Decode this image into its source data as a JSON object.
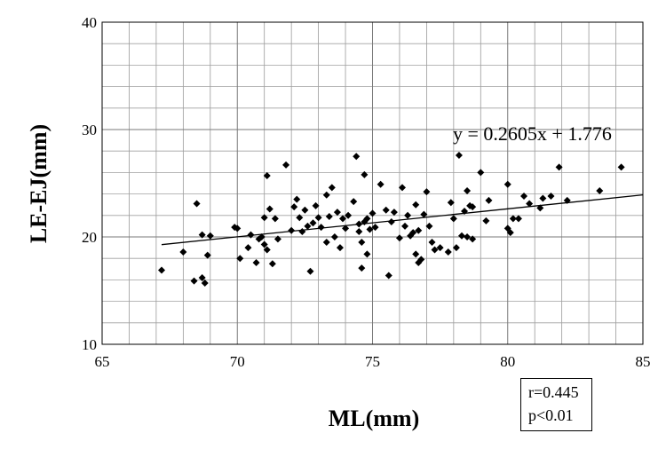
{
  "chart_data": {
    "type": "scatter",
    "title": "",
    "xlabel": "ML(mm)",
    "ylabel": "LE-EJ(mm)",
    "xlim": [
      65,
      85
    ],
    "ylim": [
      10,
      40
    ],
    "x_ticks": [
      "65",
      "70",
      "75",
      "80",
      "85"
    ],
    "y_ticks": [
      "10",
      "20",
      "30",
      "40"
    ],
    "grid": true,
    "marker": "diamond",
    "color": "#000000",
    "trendline": {
      "slope": 0.2605,
      "intercept": 1.776,
      "x_range": [
        67.2,
        85
      ],
      "equation": "y = 0.2605x + 1.776"
    },
    "stats": {
      "r": "r=0.445",
      "p": "p<0.01"
    },
    "points": [
      [
        67.2,
        16.9
      ],
      [
        68.0,
        18.6
      ],
      [
        68.4,
        15.9
      ],
      [
        68.5,
        23.1
      ],
      [
        68.7,
        16.2
      ],
      [
        68.7,
        20.2
      ],
      [
        68.8,
        15.7
      ],
      [
        68.9,
        18.3
      ],
      [
        69.0,
        20.1
      ],
      [
        69.9,
        20.9
      ],
      [
        70.0,
        20.8
      ],
      [
        70.1,
        18.0
      ],
      [
        70.4,
        19.0
      ],
      [
        70.5,
        20.2
      ],
      [
        70.7,
        17.6
      ],
      [
        70.8,
        19.8
      ],
      [
        70.9,
        20.0
      ],
      [
        71.0,
        21.8
      ],
      [
        71.0,
        19.3
      ],
      [
        71.1,
        25.7
      ],
      [
        71.1,
        18.8
      ],
      [
        71.2,
        22.6
      ],
      [
        71.3,
        17.5
      ],
      [
        71.4,
        21.7
      ],
      [
        71.5,
        19.8
      ],
      [
        71.8,
        26.7
      ],
      [
        72.0,
        20.6
      ],
      [
        72.1,
        22.8
      ],
      [
        72.2,
        23.5
      ],
      [
        72.3,
        21.8
      ],
      [
        72.4,
        20.5
      ],
      [
        72.5,
        22.5
      ],
      [
        72.6,
        21.0
      ],
      [
        72.7,
        16.8
      ],
      [
        72.8,
        21.3
      ],
      [
        72.9,
        22.9
      ],
      [
        73.0,
        21.8
      ],
      [
        73.1,
        20.9
      ],
      [
        73.3,
        23.9
      ],
      [
        73.3,
        19.5
      ],
      [
        73.4,
        21.9
      ],
      [
        73.5,
        24.6
      ],
      [
        73.6,
        20.0
      ],
      [
        73.7,
        22.3
      ],
      [
        73.8,
        19.0
      ],
      [
        73.9,
        21.7
      ],
      [
        74.0,
        20.8
      ],
      [
        74.1,
        22.0
      ],
      [
        74.3,
        23.3
      ],
      [
        74.4,
        27.5
      ],
      [
        74.5,
        21.2
      ],
      [
        74.5,
        20.5
      ],
      [
        74.6,
        19.5
      ],
      [
        74.6,
        17.1
      ],
      [
        74.7,
        21.4
      ],
      [
        74.7,
        25.8
      ],
      [
        74.8,
        21.7
      ],
      [
        74.8,
        18.4
      ],
      [
        74.9,
        20.7
      ],
      [
        75.0,
        22.2
      ],
      [
        75.1,
        20.9
      ],
      [
        75.3,
        24.9
      ],
      [
        75.5,
        22.5
      ],
      [
        75.6,
        16.4
      ],
      [
        75.7,
        21.4
      ],
      [
        75.8,
        22.3
      ],
      [
        76.0,
        19.9
      ],
      [
        76.1,
        24.6
      ],
      [
        76.2,
        21.0
      ],
      [
        76.3,
        22.0
      ],
      [
        76.4,
        20.1
      ],
      [
        76.5,
        20.4
      ],
      [
        76.6,
        18.4
      ],
      [
        76.6,
        23.0
      ],
      [
        76.7,
        17.6
      ],
      [
        76.7,
        20.6
      ],
      [
        76.8,
        17.9
      ],
      [
        76.9,
        22.1
      ],
      [
        77.0,
        24.2
      ],
      [
        77.1,
        21.0
      ],
      [
        77.2,
        19.5
      ],
      [
        77.3,
        18.8
      ],
      [
        77.5,
        19.0
      ],
      [
        77.8,
        18.6
      ],
      [
        77.9,
        23.2
      ],
      [
        78.0,
        21.7
      ],
      [
        78.1,
        19.0
      ],
      [
        78.2,
        27.6
      ],
      [
        78.3,
        20.1
      ],
      [
        78.4,
        22.4
      ],
      [
        78.5,
        24.3
      ],
      [
        78.5,
        20.0
      ],
      [
        78.6,
        22.9
      ],
      [
        78.7,
        19.8
      ],
      [
        78.7,
        22.8
      ],
      [
        79.0,
        26.0
      ],
      [
        79.2,
        21.5
      ],
      [
        79.3,
        23.4
      ],
      [
        80.0,
        24.9
      ],
      [
        80.0,
        20.8
      ],
      [
        80.1,
        20.4
      ],
      [
        80.2,
        21.7
      ],
      [
        80.4,
        21.7
      ],
      [
        80.6,
        23.8
      ],
      [
        80.8,
        23.1
      ],
      [
        81.2,
        22.7
      ],
      [
        81.3,
        23.6
      ],
      [
        81.6,
        23.8
      ],
      [
        81.9,
        26.5
      ],
      [
        82.2,
        23.4
      ],
      [
        83.4,
        24.3
      ],
      [
        84.2,
        26.5
      ]
    ]
  }
}
